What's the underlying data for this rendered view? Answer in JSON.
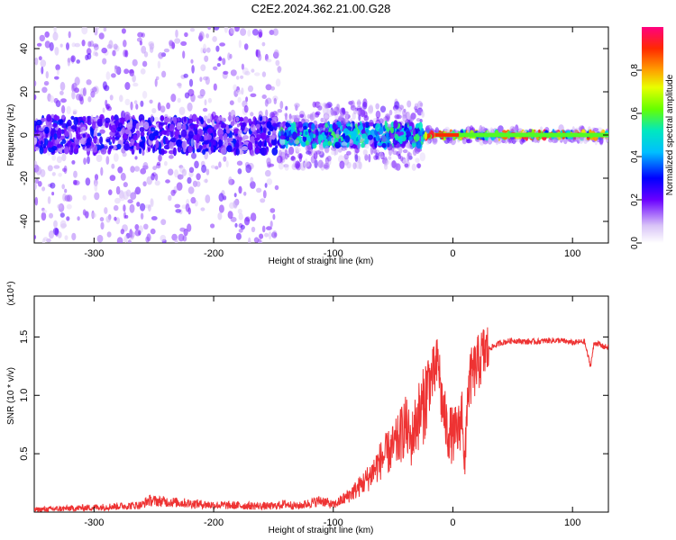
{
  "title": "C2E2.2024.362.21.00.G28",
  "chart_data": [
    {
      "type": "heatmap",
      "xlabel": "Height of straight line (km)",
      "ylabel": "Frequency (Hz)",
      "xlim": [
        -350,
        130
      ],
      "ylim": [
        -50,
        50
      ],
      "xticks": [
        -300,
        -200,
        -100,
        0,
        100
      ],
      "yticks": [
        -40,
        -20,
        0,
        20,
        40
      ],
      "colorbar": {
        "label": "Normalized spectral amplitude",
        "ticks": [
          0.0,
          0.2,
          0.4,
          0.6,
          0.8
        ],
        "range": [
          0,
          1
        ]
      },
      "regions": [
        {
          "x_range": [
            -350,
            -145
          ],
          "description_values": {
            "freq_spread": 50,
            "core_halfwidth": 8,
            "amp": 0.25
          }
        },
        {
          "x_range": [
            -145,
            -25
          ],
          "description_values": {
            "freq_spread": 15,
            "core_halfwidth": 5,
            "amp": 0.45
          }
        },
        {
          "x_range": [
            -25,
            130
          ],
          "description_values": {
            "freq_spread": 3,
            "core_halfwidth": 1,
            "amp": 0.75
          }
        }
      ]
    },
    {
      "type": "line",
      "xlabel": "Height of straight line (km)",
      "ylabel": "SNR (10 * v/v)",
      "multiplier": "(x10⁴)",
      "xlim": [
        -350,
        130
      ],
      "ylim": [
        0,
        1.85
      ],
      "xticks": [
        -300,
        -200,
        -100,
        0,
        100
      ],
      "yticks": [
        0.5,
        1.0,
        1.5
      ],
      "ytick_labels": [
        "0.5",
        "1.0",
        "1.5"
      ],
      "color": "#ee3333",
      "series": [
        {
          "x": [
            -350,
            -300,
            -260,
            -255,
            -200,
            -150,
            -140,
            -130,
            -110,
            -100,
            -90,
            -80,
            -70,
            -60,
            -50,
            -45,
            -40,
            -35,
            -30,
            -25,
            -20,
            -15,
            -12,
            -10,
            -5,
            0,
            5,
            8,
            10,
            12,
            15,
            20,
            25,
            30,
            40,
            50,
            60,
            70,
            80,
            90,
            100,
            110,
            115,
            118,
            120,
            125,
            130
          ],
          "y": [
            0.02,
            0.04,
            0.06,
            0.1,
            0.06,
            0.05,
            0.07,
            0.05,
            0.1,
            0.06,
            0.12,
            0.2,
            0.3,
            0.45,
            0.55,
            0.62,
            0.75,
            0.6,
            0.8,
            0.9,
            1.1,
            1.2,
            1.3,
            1.0,
            0.7,
            0.65,
            0.7,
            0.9,
            0.3,
            1.0,
            1.15,
            1.25,
            1.35,
            1.4,
            1.45,
            1.47,
            1.46,
            1.46,
            1.47,
            1.47,
            1.45,
            1.46,
            1.25,
            1.44,
            1.45,
            1.42,
            1.41
          ]
        }
      ]
    }
  ]
}
